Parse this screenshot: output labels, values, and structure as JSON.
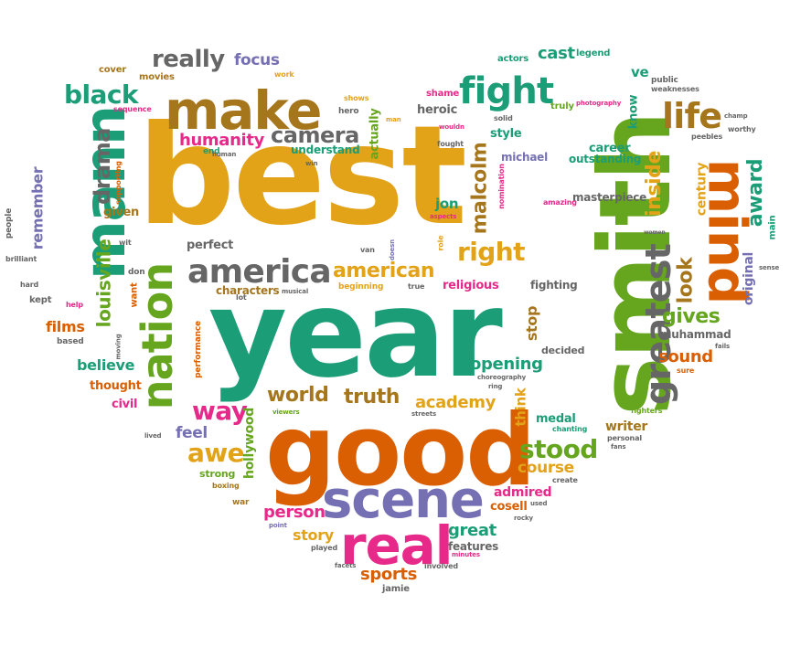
{
  "palette": {
    "gold": "#E3A319",
    "teal": "#1B9E77",
    "orange": "#D95F02",
    "purple": "#7570B3",
    "magenta": "#E7298A",
    "green": "#66A61E",
    "olive": "#A6761D",
    "gray": "#666666"
  },
  "words": [
    {
      "text": "best",
      "color": "gold"
    },
    {
      "text": "year",
      "color": "teal"
    },
    {
      "text": "smith",
      "color": "green"
    },
    {
      "text": "good",
      "color": "orange"
    },
    {
      "text": "scene",
      "color": "purple"
    },
    {
      "text": "real",
      "color": "magenta"
    },
    {
      "text": "make",
      "color": "olive"
    },
    {
      "text": "mann",
      "color": "teal"
    },
    {
      "text": "mind",
      "color": "orange"
    },
    {
      "text": "nation",
      "color": "green"
    },
    {
      "text": "america",
      "color": "gray"
    },
    {
      "text": "fight",
      "color": "teal"
    },
    {
      "text": "greatest",
      "color": "gray"
    },
    {
      "text": "life",
      "color": "olive"
    },
    {
      "text": "black",
      "color": "teal"
    },
    {
      "text": "really",
      "color": "gray"
    },
    {
      "text": "camera",
      "color": "gray"
    },
    {
      "text": "stood",
      "color": "green"
    },
    {
      "text": "right",
      "color": "gold"
    },
    {
      "text": "american",
      "color": "gold"
    },
    {
      "text": "world",
      "color": "olive"
    },
    {
      "text": "truth",
      "color": "olive"
    },
    {
      "text": "awe",
      "color": "gold"
    },
    {
      "text": "way",
      "color": "magenta"
    },
    {
      "text": "drama",
      "color": "gray"
    },
    {
      "text": "louisville",
      "color": "green"
    },
    {
      "text": "malcolm",
      "color": "olive"
    },
    {
      "text": "inside",
      "color": "gold"
    },
    {
      "text": "award",
      "color": "teal"
    },
    {
      "text": "humanity",
      "color": "magenta"
    },
    {
      "text": "gives",
      "color": "green"
    },
    {
      "text": "look",
      "color": "olive"
    },
    {
      "text": "academy",
      "color": "gold"
    },
    {
      "text": "opening",
      "color": "teal"
    },
    {
      "text": "remember",
      "color": "purple"
    },
    {
      "text": "sports",
      "color": "orange"
    },
    {
      "text": "great",
      "color": "teal"
    },
    {
      "text": "person",
      "color": "magenta"
    },
    {
      "text": "sound",
      "color": "orange"
    },
    {
      "text": "believe",
      "color": "teal"
    },
    {
      "text": "course",
      "color": "gold"
    },
    {
      "text": "cast",
      "color": "teal"
    },
    {
      "text": "focus",
      "color": "purple"
    },
    {
      "text": "feel",
      "color": "purple"
    },
    {
      "text": "story",
      "color": "gold"
    },
    {
      "text": "films",
      "color": "orange"
    },
    {
      "text": "century",
      "color": "gold"
    },
    {
      "text": "original",
      "color": "purple"
    },
    {
      "text": "stop",
      "color": "olive"
    },
    {
      "text": "think",
      "color": "gold"
    },
    {
      "text": "hollywood",
      "color": "green"
    },
    {
      "text": "perfect",
      "color": "gray"
    },
    {
      "text": "characters",
      "color": "olive"
    },
    {
      "text": "given",
      "color": "olive"
    },
    {
      "text": "actually",
      "color": "green"
    },
    {
      "text": "understand",
      "color": "teal"
    },
    {
      "text": "career",
      "color": "teal"
    },
    {
      "text": "outstanding",
      "color": "teal"
    },
    {
      "text": "style",
      "color": "teal"
    },
    {
      "text": "heroic",
      "color": "gray"
    },
    {
      "text": "michael",
      "color": "purple"
    },
    {
      "text": "jon",
      "color": "teal"
    },
    {
      "text": "religious",
      "color": "magenta"
    },
    {
      "text": "fighting",
      "color": "gray"
    },
    {
      "text": "muhammad",
      "color": "gray"
    },
    {
      "text": "writer",
      "color": "olive"
    },
    {
      "text": "medal",
      "color": "teal"
    },
    {
      "text": "admired",
      "color": "magenta"
    },
    {
      "text": "cosell",
      "color": "orange"
    },
    {
      "text": "features",
      "color": "gray"
    },
    {
      "text": "thought",
      "color": "orange"
    },
    {
      "text": "civil",
      "color": "magenta"
    },
    {
      "text": "strong",
      "color": "green"
    },
    {
      "text": "decided",
      "color": "gray"
    },
    {
      "text": "masterpiece",
      "color": "gray"
    },
    {
      "text": "know",
      "color": "teal"
    },
    {
      "text": "ve",
      "color": "teal"
    },
    {
      "text": "legend",
      "color": "teal"
    },
    {
      "text": "actors",
      "color": "teal"
    },
    {
      "text": "cover",
      "color": "olive"
    },
    {
      "text": "movies",
      "color": "olive"
    },
    {
      "text": "people",
      "color": "gray"
    },
    {
      "text": "brilliant",
      "color": "gray"
    },
    {
      "text": "hard",
      "color": "gray"
    },
    {
      "text": "kept",
      "color": "gray"
    },
    {
      "text": "based",
      "color": "gray"
    },
    {
      "text": "help",
      "color": "magenta"
    },
    {
      "text": "don",
      "color": "gray"
    },
    {
      "text": "want",
      "color": "orange"
    },
    {
      "text": "wit",
      "color": "gray"
    },
    {
      "text": "supporting",
      "color": "orange"
    },
    {
      "text": "sequence",
      "color": "magenta"
    },
    {
      "text": "end",
      "color": "teal"
    },
    {
      "text": "human",
      "color": "gray"
    },
    {
      "text": "hero",
      "color": "gray"
    },
    {
      "text": "shows",
      "color": "gold"
    },
    {
      "text": "man",
      "color": "gold"
    },
    {
      "text": "win",
      "color": "gray"
    },
    {
      "text": "shame",
      "color": "magenta"
    },
    {
      "text": "work",
      "color": "gold"
    },
    {
      "text": "wouldn",
      "color": "magenta"
    },
    {
      "text": "fought",
      "color": "gray"
    },
    {
      "text": "solid",
      "color": "gray"
    },
    {
      "text": "truly",
      "color": "green"
    },
    {
      "text": "photography",
      "color": "magenta"
    },
    {
      "text": "public",
      "color": "gray"
    },
    {
      "text": "weaknesses",
      "color": "gray"
    },
    {
      "text": "champ",
      "color": "gray"
    },
    {
      "text": "worthy",
      "color": "gray"
    },
    {
      "text": "peebles",
      "color": "gray"
    },
    {
      "text": "nomination",
      "color": "magenta"
    },
    {
      "text": "amazing",
      "color": "magenta"
    },
    {
      "text": "aspects",
      "color": "magenta"
    },
    {
      "text": "doesn",
      "color": "purple"
    },
    {
      "text": "van",
      "color": "gray"
    },
    {
      "text": "role",
      "color": "gold"
    },
    {
      "text": "true",
      "color": "gray"
    },
    {
      "text": "lot",
      "color": "gray"
    },
    {
      "text": "beginning",
      "color": "gold"
    },
    {
      "text": "musical",
      "color": "gray"
    },
    {
      "text": "performance",
      "color": "orange"
    },
    {
      "text": "moving",
      "color": "gray"
    },
    {
      "text": "choreography",
      "color": "gray"
    },
    {
      "text": "ring",
      "color": "gray"
    },
    {
      "text": "chanting",
      "color": "teal"
    },
    {
      "text": "fighters",
      "color": "green"
    },
    {
      "text": "personal",
      "color": "gray"
    },
    {
      "text": "fans",
      "color": "gray"
    },
    {
      "text": "create",
      "color": "gray"
    },
    {
      "text": "used",
      "color": "gray"
    },
    {
      "text": "rocky",
      "color": "gray"
    },
    {
      "text": "war",
      "color": "olive"
    },
    {
      "text": "boxing",
      "color": "olive"
    },
    {
      "text": "point",
      "color": "purple"
    },
    {
      "text": "played",
      "color": "gray"
    },
    {
      "text": "facets",
      "color": "gray"
    },
    {
      "text": "involved",
      "color": "gray"
    },
    {
      "text": "minutes",
      "color": "magenta"
    },
    {
      "text": "jamie",
      "color": "gray"
    },
    {
      "text": "lived",
      "color": "gray"
    },
    {
      "text": "viewers",
      "color": "green"
    },
    {
      "text": "streets",
      "color": "gray"
    },
    {
      "text": "main",
      "color": "teal"
    },
    {
      "text": "sense",
      "color": "gray"
    },
    {
      "text": "fails",
      "color": "gray"
    },
    {
      "text": "sure",
      "color": "orange"
    },
    {
      "text": "women",
      "color": "gray"
    }
  ]
}
